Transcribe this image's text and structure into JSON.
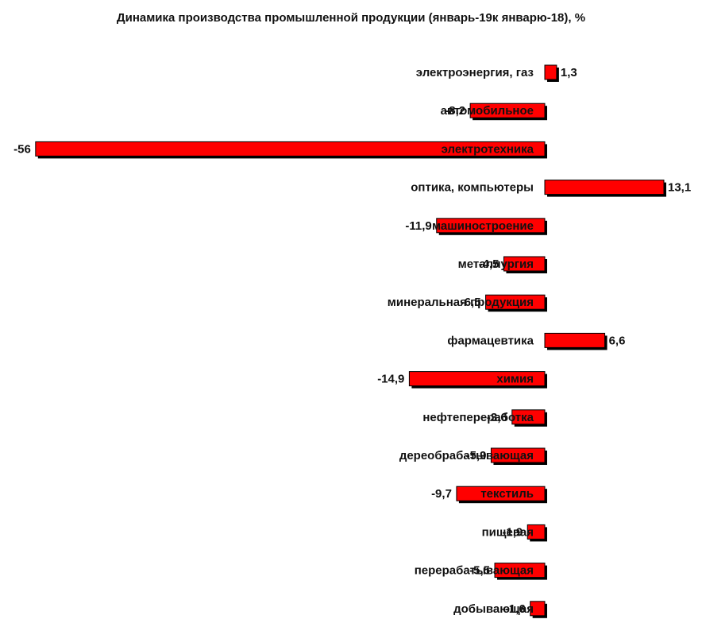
{
  "chart_data": {
    "type": "bar",
    "orientation": "horizontal",
    "title": "Динамика производства промышленной продукции (январь-19к январю-18), %",
    "xlabel": "",
    "ylabel": "",
    "xlim": [
      -56,
      13.1
    ],
    "grid": false,
    "legend": "none",
    "bar_color": "#ff0000",
    "shadow_color": "#000000",
    "categories": [
      "электроэнергия, газ",
      "автомобильное",
      "электротехника",
      "оптика, компьютеры",
      "машиностроение",
      "металлургия",
      "минеральная продукция",
      "фармацевтика",
      "химия",
      "нефтепереработка",
      "дереобрабатывающая",
      "текстиль",
      "пищевая",
      "перерабатывающая",
      "добывающая"
    ],
    "value_labels": [
      "1,3",
      "-8,2",
      "-56",
      "13,1",
      "-11,9",
      "-4,5",
      "-6,5",
      "6,6",
      "-14,9",
      "-3,6",
      "-5,9",
      "-9,7",
      "-1,9",
      "-5,5",
      "-1,6"
    ],
    "values": [
      1.3,
      -8.2,
      -56,
      13.1,
      -11.9,
      -4.5,
      -6.5,
      6.6,
      -14.9,
      -3.6,
      -5.9,
      -9.7,
      -1.9,
      -5.5,
      -1.6
    ]
  }
}
